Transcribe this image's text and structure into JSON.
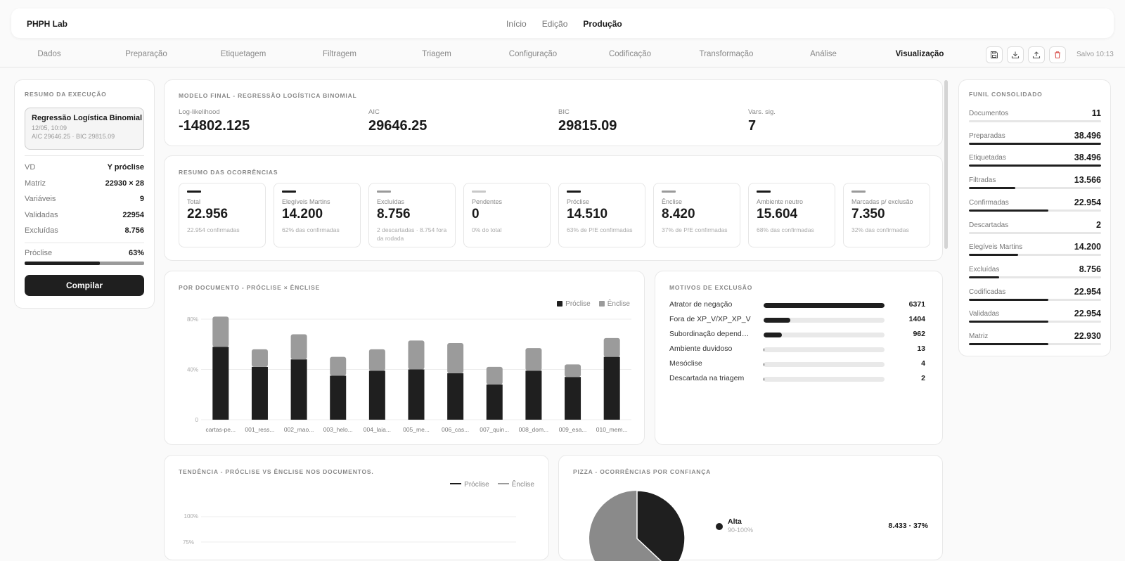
{
  "app": {
    "brand": "PHPH Lab",
    "modes": [
      "Início",
      "Edição",
      "Produção"
    ],
    "active_mode": "Produção"
  },
  "steps": [
    "Dados",
    "Preparação",
    "Etiquetagem",
    "Filtragem",
    "Triagem",
    "Configuração",
    "Codificação",
    "Transformação",
    "Análise",
    "Visualização"
  ],
  "active_step": "Visualização",
  "toolbar": {
    "icons": [
      "save-icon",
      "download-icon",
      "upload-icon",
      "trash-icon"
    ],
    "saved": "Salvo 10:13"
  },
  "summary": {
    "title": "Resumo da execução",
    "run": {
      "title": "Regressão Logística Binomial",
      "date": "12/05, 10:09",
      "stats": "AIC 29646.25 · BIC 29815.09"
    },
    "rows": [
      {
        "k": "VD",
        "v": "Y próclise"
      },
      {
        "k": "Matriz",
        "v": "22930 × 28"
      },
      {
        "k": "Variáveis",
        "v": "9"
      },
      {
        "k": "Validadas",
        "v": "22954"
      },
      {
        "k": "Excluídas",
        "v": "8.756"
      }
    ],
    "proclise": {
      "label": "Próclise",
      "value": "63%",
      "fraction": 0.63
    },
    "compile": "Compilar"
  },
  "model": {
    "title": "Modelo final - Regressão logística binomial",
    "metrics": [
      {
        "label": "Log-likelihood",
        "value": "-14802.125"
      },
      {
        "label": "AIC",
        "value": "29646.25"
      },
      {
        "label": "BIC",
        "value": "29815.09"
      },
      {
        "label": "Vars. sig.",
        "value": "7"
      }
    ]
  },
  "occurrences": {
    "title": "Resumo das ocorrências",
    "cards": [
      {
        "label": "Total",
        "value": "22.956",
        "desc": "22.954 confirmadas",
        "color": "#1a1a1a"
      },
      {
        "label": "Elegíveis Martins",
        "value": "14.200",
        "desc": "62% das confirmadas",
        "color": "#1a1a1a"
      },
      {
        "label": "Excluídas",
        "value": "8.756",
        "desc": "2 descartadas · 8.754 fora da rodada",
        "color": "#9a9a9a"
      },
      {
        "label": "Pendentes",
        "value": "0",
        "desc": "0% do total",
        "color": "#c8c8c8"
      },
      {
        "label": "Próclise",
        "value": "14.510",
        "desc": "63% de P/E confirmadas",
        "color": "#1a1a1a"
      },
      {
        "label": "Ênclise",
        "value": "8.420",
        "desc": "37% de P/E confirmadas",
        "color": "#9a9a9a"
      },
      {
        "label": "Ambiente neutro",
        "value": "15.604",
        "desc": "68% das confirmadas",
        "color": "#1a1a1a"
      },
      {
        "label": "Marcadas p/ exclusão",
        "value": "7.350",
        "desc": "32% das confirmadas",
        "color": "#9a9a9a"
      }
    ]
  },
  "chart_data": [
    {
      "type": "bar",
      "title": "Por documento - próclise × ênclise",
      "categories": [
        "cartas-pe...",
        "001_ress...",
        "002_mao...",
        "003_helo...",
        "004_laia...",
        "005_me...",
        "006_cas...",
        "007_quin...",
        "008_dom...",
        "009_esa...",
        "010_mem..."
      ],
      "series": [
        {
          "name": "Próclise",
          "values": [
            58,
            42,
            48,
            35,
            39,
            40,
            37,
            28,
            39,
            34,
            50
          ],
          "color": "#1f1f1f"
        },
        {
          "name": "Ênclise",
          "values": [
            24,
            14,
            20,
            15,
            17,
            23,
            24,
            14,
            18,
            10,
            15
          ],
          "color": "#9b9b9b"
        }
      ],
      "stacked": true,
      "ylim": [
        0,
        80
      ],
      "yticks": [
        "80%",
        "40%",
        "0"
      ],
      "legend": "top-right",
      "grid": true
    },
    {
      "type": "line",
      "title": "Tendência - próclise vs ênclise nos documentos.",
      "series": [
        {
          "name": "Próclise",
          "color": "#1a1a1a"
        },
        {
          "name": "Ênclise",
          "color": "#9a9a9a"
        }
      ],
      "yticks": [
        "100%",
        "75%"
      ],
      "legend": "top-right",
      "grid": true
    },
    {
      "type": "pie",
      "title": "Pizza - ocorrências por confiança",
      "slices": [
        {
          "label": "Alta",
          "range": "90-100%",
          "value": "8.433 · 37%",
          "fraction": 0.37,
          "color": "#1f1f1f"
        }
      ]
    }
  ],
  "reasons": {
    "title": "Motivos de exclusão",
    "items": [
      {
        "label": "Atrator de negação",
        "value": "6371",
        "fraction": 1.0
      },
      {
        "label": "Fora de XP_V/XP_XP_V",
        "value": "1404",
        "fraction": 0.22
      },
      {
        "label": "Subordinação dependente",
        "value": "962",
        "fraction": 0.15
      },
      {
        "label": "Ambiente duvidoso",
        "value": "13",
        "fraction": 0.002
      },
      {
        "label": "Mesóclise",
        "value": "4",
        "fraction": 0.001
      },
      {
        "label": "Descartada na triagem",
        "value": "2",
        "fraction": 0.0005
      }
    ]
  },
  "funnel": {
    "title": "Funil consolidado",
    "items": [
      {
        "label": "Documentos",
        "value": "11",
        "fraction": 0.0
      },
      {
        "label": "Preparadas",
        "value": "38.496",
        "fraction": 1.0
      },
      {
        "label": "Etiquetadas",
        "value": "38.496",
        "fraction": 1.0
      },
      {
        "label": "Filtradas",
        "value": "13.566",
        "fraction": 0.35
      },
      {
        "label": "Confirmadas",
        "value": "22.954",
        "fraction": 0.6
      },
      {
        "label": "Descartadas",
        "value": "2",
        "fraction": 0.0
      },
      {
        "label": "Elegíveis Martins",
        "value": "14.200",
        "fraction": 0.37
      },
      {
        "label": "Excluídas",
        "value": "8.756",
        "fraction": 0.23
      },
      {
        "label": "Codificadas",
        "value": "22.954",
        "fraction": 0.6
      },
      {
        "label": "Validadas",
        "value": "22.954",
        "fraction": 0.6
      },
      {
        "label": "Matriz",
        "value": "22.930",
        "fraction": 0.6
      }
    ]
  }
}
